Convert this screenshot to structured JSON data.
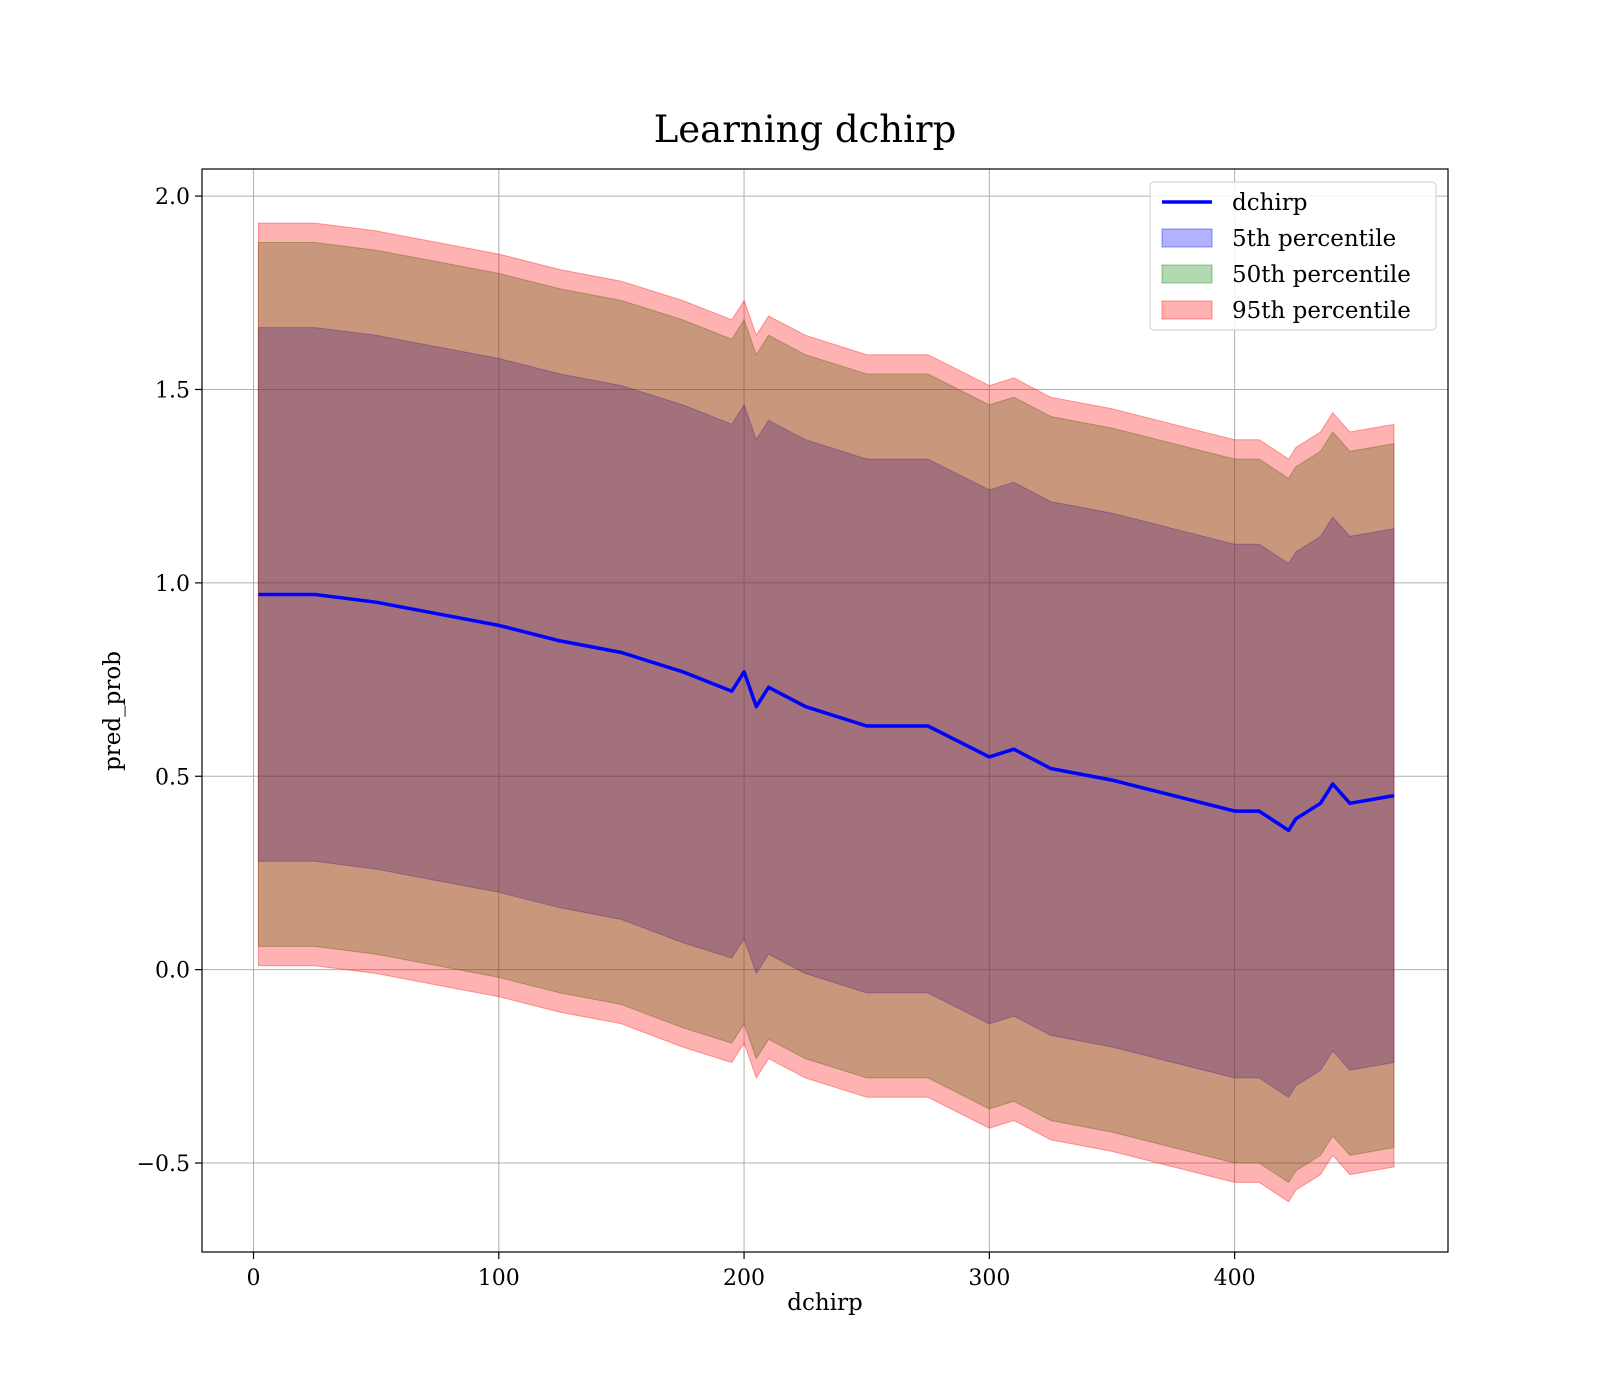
{
  "chart_data": {
    "type": "area",
    "title": "Learning dchirp",
    "xlabel": "dchirp",
    "ylabel": "pred_prob",
    "xlim": [
      -21,
      487
    ],
    "ylim": [
      -0.73,
      2.07
    ],
    "xticks": [
      0,
      100,
      200,
      300,
      400
    ],
    "yticks": [
      -0.5,
      0.0,
      0.5,
      1.0,
      1.5,
      2.0
    ],
    "xtick_labels": [
      "0",
      "100",
      "200",
      "300",
      "400"
    ],
    "ytick_labels": [
      "−0.5",
      "0.0",
      "0.5",
      "1.0",
      "1.5",
      "2.0"
    ],
    "grid": true,
    "legend_position": "top-right",
    "x": [
      2,
      25,
      50,
      75,
      100,
      125,
      150,
      175,
      195,
      200,
      205,
      210,
      225,
      250,
      275,
      300,
      310,
      325,
      350,
      375,
      400,
      410,
      422,
      425,
      435,
      440,
      447,
      465
    ],
    "series": [
      {
        "name": "dchirp",
        "kind": "line",
        "color": "#0000ff",
        "values": [
          0.97,
          0.97,
          0.95,
          0.92,
          0.89,
          0.85,
          0.82,
          0.77,
          0.72,
          0.77,
          0.68,
          0.73,
          0.68,
          0.63,
          0.63,
          0.55,
          0.57,
          0.52,
          0.49,
          0.45,
          0.41,
          0.41,
          0.36,
          0.39,
          0.43,
          0.48,
          0.43,
          0.45
        ]
      },
      {
        "name": "5th percentile",
        "kind": "band",
        "color": "#0000ff",
        "opacity": 0.3,
        "lower": [
          0.28,
          0.28,
          0.26,
          0.23,
          0.2,
          0.16,
          0.13,
          0.07,
          0.03,
          0.08,
          -0.01,
          0.04,
          -0.01,
          -0.06,
          -0.06,
          -0.14,
          -0.12,
          -0.17,
          -0.2,
          -0.24,
          -0.28,
          -0.28,
          -0.33,
          -0.3,
          -0.26,
          -0.21,
          -0.26,
          -0.24
        ],
        "upper": [
          1.66,
          1.66,
          1.64,
          1.61,
          1.58,
          1.54,
          1.51,
          1.46,
          1.41,
          1.46,
          1.37,
          1.42,
          1.37,
          1.32,
          1.32,
          1.24,
          1.26,
          1.21,
          1.18,
          1.14,
          1.1,
          1.1,
          1.05,
          1.08,
          1.12,
          1.17,
          1.12,
          1.14
        ]
      },
      {
        "name": "50th percentile",
        "kind": "band",
        "color": "#008000",
        "opacity": 0.3,
        "lower": [
          0.06,
          0.06,
          0.04,
          0.01,
          -0.02,
          -0.06,
          -0.09,
          -0.15,
          -0.19,
          -0.14,
          -0.23,
          -0.18,
          -0.23,
          -0.28,
          -0.28,
          -0.36,
          -0.34,
          -0.39,
          -0.42,
          -0.46,
          -0.5,
          -0.5,
          -0.55,
          -0.52,
          -0.48,
          -0.43,
          -0.48,
          -0.46
        ],
        "upper": [
          1.88,
          1.88,
          1.86,
          1.83,
          1.8,
          1.76,
          1.73,
          1.68,
          1.63,
          1.68,
          1.59,
          1.64,
          1.59,
          1.54,
          1.54,
          1.46,
          1.48,
          1.43,
          1.4,
          1.36,
          1.32,
          1.32,
          1.27,
          1.3,
          1.34,
          1.39,
          1.34,
          1.36
        ]
      },
      {
        "name": "95th percentile",
        "kind": "band",
        "color": "#ff0000",
        "opacity": 0.3,
        "lower": [
          0.01,
          0.01,
          -0.01,
          -0.04,
          -0.07,
          -0.11,
          -0.14,
          -0.2,
          -0.24,
          -0.19,
          -0.28,
          -0.23,
          -0.28,
          -0.33,
          -0.33,
          -0.41,
          -0.39,
          -0.44,
          -0.47,
          -0.51,
          -0.55,
          -0.55,
          -0.6,
          -0.57,
          -0.53,
          -0.48,
          -0.53,
          -0.51
        ],
        "upper": [
          1.93,
          1.93,
          1.91,
          1.88,
          1.85,
          1.81,
          1.78,
          1.73,
          1.68,
          1.73,
          1.64,
          1.69,
          1.64,
          1.59,
          1.59,
          1.51,
          1.53,
          1.48,
          1.45,
          1.41,
          1.37,
          1.37,
          1.32,
          1.35,
          1.39,
          1.44,
          1.39,
          1.41
        ]
      }
    ]
  }
}
